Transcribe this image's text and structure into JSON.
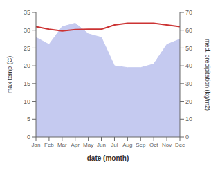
{
  "chart_data": {
    "type": "line",
    "xlabel": "date (month)",
    "ylabel": "max temp (C)",
    "y2label": "med. precipitation (kg/m2)",
    "categories": [
      "Jan",
      "Feb",
      "Mar",
      "Apr",
      "May",
      "Jun",
      "Jul",
      "Aug",
      "Sep",
      "Oct",
      "Nov",
      "Dec"
    ],
    "series": [
      {
        "type": "area",
        "axis": "y2",
        "color": "#c5caf0",
        "values": [
          56,
          52,
          62,
          64,
          58,
          56,
          40,
          39,
          39,
          41,
          52,
          55
        ]
      },
      {
        "type": "line",
        "color": "#cc3333",
        "values": [
          31.0,
          30.3,
          29.8,
          30.2,
          30.3,
          30.3,
          31.5,
          32.0,
          32.0,
          32.0,
          31.5,
          31.0
        ]
      }
    ],
    "ylim": [
      0,
      35
    ],
    "yticks": [
      0,
      5,
      10,
      15,
      20,
      25,
      30,
      35
    ],
    "y2lim": [
      0,
      70
    ],
    "y2ticks": [
      0,
      10,
      20,
      30,
      40,
      50,
      60,
      70
    ]
  }
}
